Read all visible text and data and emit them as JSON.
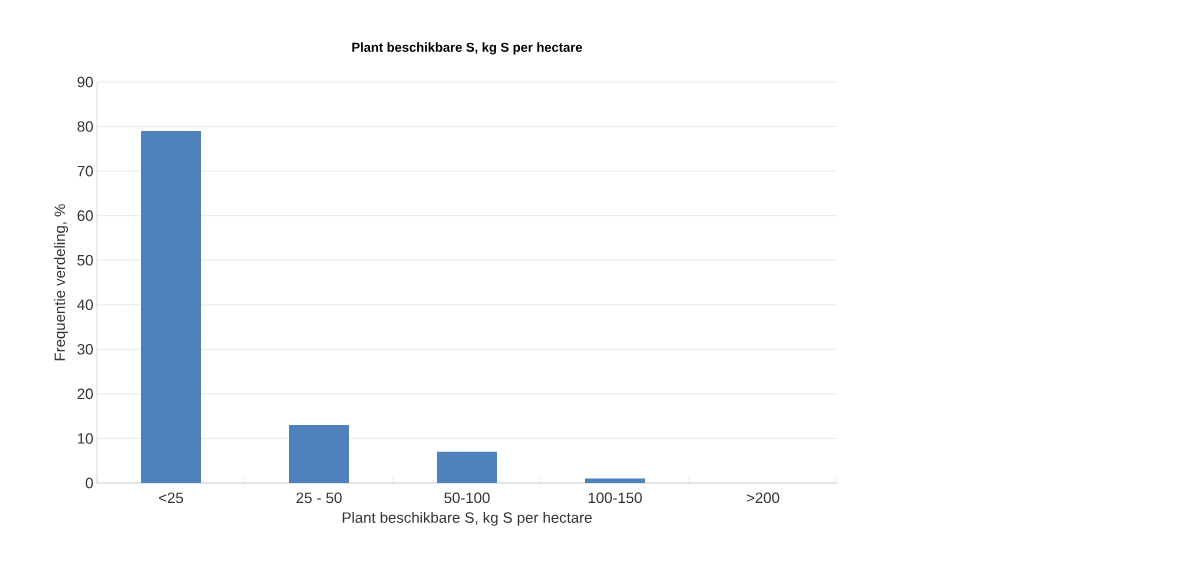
{
  "chart_data": {
    "type": "bar",
    "title": "Plant beschikbare S, kg S per hectare",
    "xlabel": "Plant beschikbare S, kg S per hectare",
    "ylabel": "Frequentie verdeling, %",
    "categories": [
      "<25",
      "25 - 50",
      "50-100",
      "100-150",
      ">200"
    ],
    "values": [
      79,
      13,
      7,
      1,
      0
    ],
    "color": "#4f81bd",
    "ylim": [
      0,
      90
    ],
    "yticks": [
      0,
      10,
      20,
      30,
      40,
      50,
      60,
      70,
      80,
      90
    ],
    "grid": "y"
  }
}
